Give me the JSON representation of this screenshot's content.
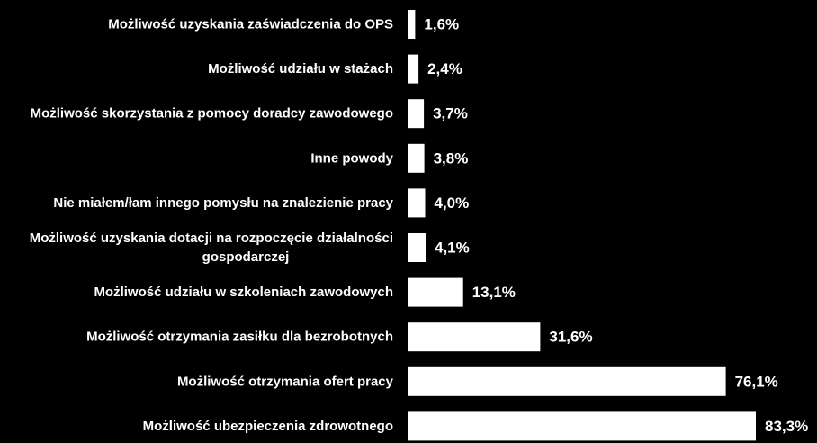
{
  "chart_data": {
    "type": "bar",
    "orientation": "horizontal",
    "categories": [
      [
        "Możliwość uzyskania zaświadczenia do OPS"
      ],
      [
        "Możliwość udziału w stażach"
      ],
      [
        "Możliwość skorzystania z pomocy doradcy zawodowego"
      ],
      [
        "Inne powody"
      ],
      [
        "Nie miałem/łam innego pomysłu na znalezienie pracy"
      ],
      [
        "Możliwość uzyskania dotacji na rozpoczęcie działalności",
        "gospodarczej"
      ],
      [
        "Możliwość udziału w szkoleniach zawodowych"
      ],
      [
        "Możliwość otrzymania zasiłku dla bezrobotnych"
      ],
      [
        "Możliwość otrzymania ofert pracy"
      ],
      [
        "Możliwość ubezpieczenia zdrowotnego"
      ]
    ],
    "values": [
      1.6,
      2.4,
      3.7,
      3.8,
      4.0,
      4.1,
      13.1,
      31.6,
      76.1,
      83.3
    ],
    "value_labels": [
      "1,6%",
      "2,4%",
      "3,7%",
      "3,8%",
      "4,0%",
      "4,1%",
      "13,1%",
      "31,6%",
      "76,1%",
      "83,3%"
    ],
    "xlim": [
      0,
      83.3
    ],
    "grid": false,
    "legend": "none",
    "bar_color": "#ffffff",
    "background": "#000000",
    "text_color": "#ffffff"
  }
}
